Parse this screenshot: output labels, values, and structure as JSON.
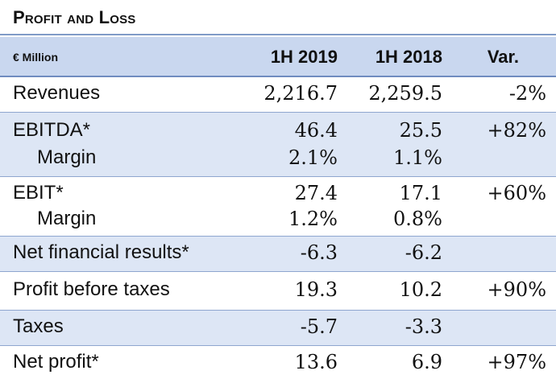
{
  "title": "Profit and Loss",
  "header": {
    "unit": "€ Million",
    "col1": "1H 2019",
    "col2": "1H 2018",
    "col3": "Var."
  },
  "rows": {
    "revenues": {
      "label": "Revenues",
      "v2019": "2,216.7",
      "v2018": "2,259.5",
      "var": "-2%"
    },
    "ebitda": {
      "label": "EBITDA*",
      "v2019": "46.4",
      "v2018": "25.5",
      "var": "+82%"
    },
    "ebitda_margin": {
      "label": "Margin",
      "v2019": "2.1%",
      "v2018": "1.1%"
    },
    "ebit": {
      "label": "EBIT*",
      "v2019": "27.4",
      "v2018": "17.1",
      "var": "+60%"
    },
    "ebit_margin": {
      "label": "Margin",
      "v2019": "1.2%",
      "v2018": "0.8%"
    },
    "net_financial": {
      "label": "Net financial results*",
      "v2019": "-6.3",
      "v2018": "-6.2"
    },
    "pbt": {
      "label": "Profit before taxes",
      "v2019": "19.3",
      "v2018": "10.2",
      "var": "+90%"
    },
    "taxes": {
      "label": "Taxes",
      "v2019": "-5.7",
      "v2018": "-3.3"
    },
    "net_profit": {
      "label": "Net profit*",
      "v2019": "13.6",
      "v2018": "6.9",
      "var": "+97%"
    }
  },
  "colors": {
    "header_band": "#c9d7ef",
    "shaded_band": "#dde6f5",
    "rule": "#8fa6cf"
  }
}
